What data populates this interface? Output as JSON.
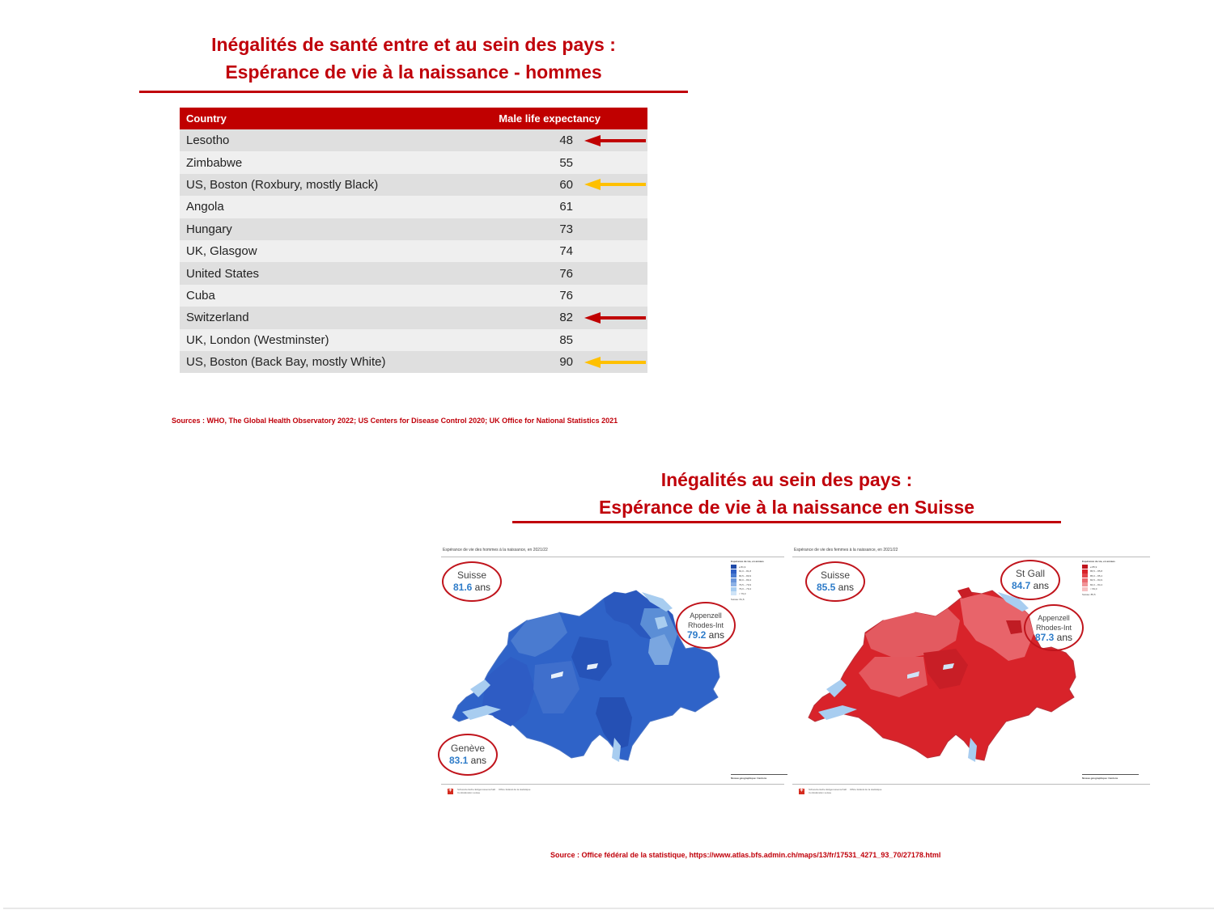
{
  "slide1": {
    "title_line1": "Inégalités de santé entre et au sein des pays :",
    "title_line2": "Espérance de vie à la naissance - hommes",
    "table": {
      "headers": [
        "Country",
        "Male life expectancy"
      ],
      "rows": [
        {
          "country": "Lesotho",
          "value": "48",
          "arrow": "red"
        },
        {
          "country": "Zimbabwe",
          "value": "55",
          "arrow": ""
        },
        {
          "country": "US, Boston (Roxbury, mostly Black)",
          "value": "60",
          "arrow": "yellow"
        },
        {
          "country": "Angola",
          "value": "61",
          "arrow": ""
        },
        {
          "country": "Hungary",
          "value": "73",
          "arrow": ""
        },
        {
          "country": "UK, Glasgow",
          "value": "74",
          "arrow": ""
        },
        {
          "country": "United States",
          "value": "76",
          "arrow": ""
        },
        {
          "country": "Cuba",
          "value": "76",
          "arrow": ""
        },
        {
          "country": "Switzerland",
          "value": "82",
          "arrow": "red"
        },
        {
          "country": "UK, London (Westminster)",
          "value": "85",
          "arrow": ""
        },
        {
          "country": "US, Boston (Back Bay, mostly White)",
          "value": "90",
          "arrow": "yellow"
        }
      ]
    },
    "source": "Sources : WHO, The Global Health Observatory 2022; US Centers for Disease Control 2020; UK Office for National Statistics 2021"
  },
  "slide2": {
    "title_line1": "Inégalités au sein des pays :",
    "title_line2": "Espérance de vie à la naissance en Suisse",
    "map_men": {
      "caption": "Espérance de vie des hommes à la naissance, en 2021/22",
      "legend_title": "Espérance de vie, en années",
      "legend_note": "Suisse: 81,6",
      "scale_label": "Niveau géographique: Cantons",
      "callouts": [
        {
          "name": "Suisse",
          "value": "81.6",
          "unit": "ans"
        },
        {
          "name": "Appenzell Rhodes-Int",
          "name_line1": "Appenzell",
          "name_line2": "Rhodes-Int",
          "value": "79.2",
          "unit": "ans"
        },
        {
          "name": "Genève",
          "value": "83.1",
          "unit": "ans"
        }
      ]
    },
    "map_women": {
      "caption": "Espérance de vie des femmes à la naissance, en 2021/22",
      "legend_title": "Espérance de vie, en années",
      "legend_note": "Suisse: 85,5",
      "scale_label": "Niveau géographique: Cantons",
      "callouts": [
        {
          "name": "Suisse",
          "value": "85.5",
          "unit": "ans"
        },
        {
          "name": "St Gall",
          "value": "84.7",
          "unit": "ans"
        },
        {
          "name": "Appenzell Rhodes-Int",
          "name_line1": "Appenzell",
          "name_line2": "Rhodes-Int",
          "value": "87.3",
          "unit": "ans"
        }
      ]
    },
    "source": "Source : Office fédéral de la statistique, https://www.atlas.bfs.admin.ch/maps/13/fr/17531_4271_93_70/27178.html"
  },
  "colors": {
    "accent_red": "#c0000a",
    "table_header": "#c00000",
    "arrow_red": "#c00000",
    "arrow_yellow": "#ffc000",
    "value_blue": "#2e7cc9",
    "map_men_blue": "#2f5fc4",
    "map_women_red": "#d8232a"
  }
}
